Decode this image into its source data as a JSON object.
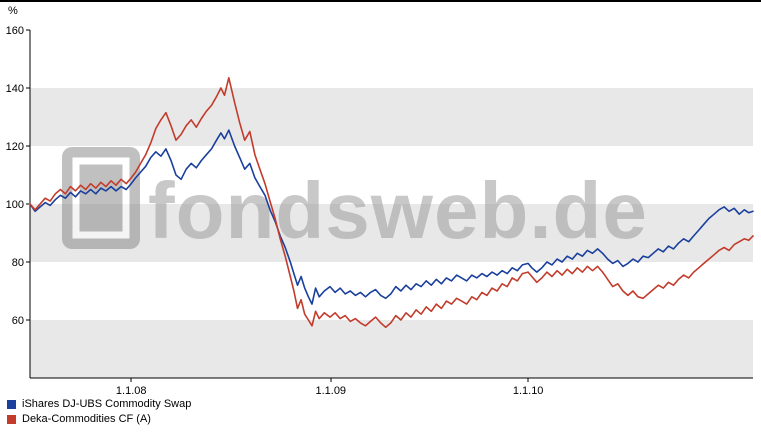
{
  "chart_data": {
    "type": "line",
    "title": "",
    "unit_label": "%",
    "ylim": [
      40,
      160
    ],
    "y_ticks": [
      160,
      140,
      120,
      100,
      80,
      60
    ],
    "x_ticks": [
      {
        "label": "1.1.08",
        "t": 14
      },
      {
        "label": "1.1.09",
        "t": 41.6
      },
      {
        "label": "1.1.10",
        "t": 68.9
      }
    ],
    "gray_bands": [
      [
        40,
        60
      ],
      [
        80,
        100
      ],
      [
        120,
        140
      ]
    ],
    "grid": "banded",
    "legend_position": "bottom-left",
    "watermark_text": "fondsweb.de",
    "colors": {
      "band": "#e8e8e8",
      "axis": "#000000",
      "watermark": "#9c9c9c",
      "background": "#ffffff"
    },
    "series": [
      {
        "name": "iShares DJ-UBS Commodity Swap",
        "color": "#1a3f9c",
        "points": [
          [
            0,
            100
          ],
          [
            0.7,
            97.5
          ],
          [
            1.4,
            99
          ],
          [
            2.1,
            100.5
          ],
          [
            2.8,
            99.5
          ],
          [
            3.5,
            101.5
          ],
          [
            4.2,
            103
          ],
          [
            4.9,
            102
          ],
          [
            5.6,
            104
          ],
          [
            6.3,
            102.5
          ],
          [
            7,
            104.5
          ],
          [
            7.7,
            103.5
          ],
          [
            8.4,
            105
          ],
          [
            9.1,
            103.5
          ],
          [
            9.8,
            105.5
          ],
          [
            10.5,
            104.5
          ],
          [
            11.2,
            106
          ],
          [
            11.9,
            104.5
          ],
          [
            12.6,
            106
          ],
          [
            13.3,
            105
          ],
          [
            14,
            107
          ],
          [
            14.6,
            109
          ],
          [
            15.3,
            111
          ],
          [
            16,
            113
          ],
          [
            16.7,
            116
          ],
          [
            17.4,
            118
          ],
          [
            18.1,
            116.5
          ],
          [
            18.8,
            119
          ],
          [
            19.5,
            115
          ],
          [
            20.2,
            110
          ],
          [
            20.9,
            108.5
          ],
          [
            21.6,
            112
          ],
          [
            22.3,
            114
          ],
          [
            23,
            112.5
          ],
          [
            23.7,
            115
          ],
          [
            24.4,
            117
          ],
          [
            25.1,
            119
          ],
          [
            25.8,
            122
          ],
          [
            26.4,
            124.5
          ],
          [
            26.9,
            122.5
          ],
          [
            27.5,
            125.5
          ],
          [
            28.3,
            120
          ],
          [
            29,
            116
          ],
          [
            29.7,
            112
          ],
          [
            30.4,
            114
          ],
          [
            31.1,
            109
          ],
          [
            31.8,
            106
          ],
          [
            32.5,
            103
          ],
          [
            33.2,
            98
          ],
          [
            33.9,
            94
          ],
          [
            34.6,
            89
          ],
          [
            35.3,
            85
          ],
          [
            36,
            80
          ],
          [
            36.5,
            76
          ],
          [
            37,
            72
          ],
          [
            37.5,
            75
          ],
          [
            38,
            71
          ],
          [
            38.5,
            68
          ],
          [
            39,
            65.5
          ],
          [
            39.5,
            71
          ],
          [
            40,
            68
          ],
          [
            40.7,
            70
          ],
          [
            41.5,
            71.5
          ],
          [
            42.2,
            69.5
          ],
          [
            42.9,
            71
          ],
          [
            43.6,
            69
          ],
          [
            44.3,
            70
          ],
          [
            45,
            68.5
          ],
          [
            45.7,
            69.5
          ],
          [
            46.4,
            68
          ],
          [
            47.1,
            69.5
          ],
          [
            47.8,
            70.5
          ],
          [
            48.5,
            68.5
          ],
          [
            49.2,
            67.5
          ],
          [
            49.9,
            69
          ],
          [
            50.6,
            71.5
          ],
          [
            51.3,
            70
          ],
          [
            52,
            72
          ],
          [
            52.7,
            70.5
          ],
          [
            53.4,
            72.5
          ],
          [
            54.1,
            71.5
          ],
          [
            54.8,
            73.5
          ],
          [
            55.5,
            72
          ],
          [
            56.2,
            74
          ],
          [
            56.9,
            72.5
          ],
          [
            57.6,
            74.5
          ],
          [
            58.3,
            73.5
          ],
          [
            59,
            75.5
          ],
          [
            59.7,
            74.5
          ],
          [
            60.4,
            73.5
          ],
          [
            61.1,
            75.5
          ],
          [
            61.8,
            74.5
          ],
          [
            62.5,
            76
          ],
          [
            63.2,
            75
          ],
          [
            63.9,
            76.5
          ],
          [
            64.6,
            75.5
          ],
          [
            65.3,
            77
          ],
          [
            66,
            76
          ],
          [
            66.7,
            78
          ],
          [
            67.4,
            77
          ],
          [
            68.1,
            79
          ],
          [
            68.9,
            79.5
          ],
          [
            69.4,
            78
          ],
          [
            70.1,
            76.5
          ],
          [
            70.8,
            78
          ],
          [
            71.5,
            80
          ],
          [
            72.2,
            79
          ],
          [
            72.9,
            81
          ],
          [
            73.6,
            80
          ],
          [
            74.3,
            82
          ],
          [
            75,
            81
          ],
          [
            75.7,
            83
          ],
          [
            76.4,
            82
          ],
          [
            77.1,
            84
          ],
          [
            77.8,
            83
          ],
          [
            78.5,
            84.5
          ],
          [
            79.2,
            83
          ],
          [
            79.9,
            81
          ],
          [
            80.6,
            79.5
          ],
          [
            81.3,
            80.5
          ],
          [
            82,
            78.5
          ],
          [
            82.7,
            79.5
          ],
          [
            83.4,
            81
          ],
          [
            84.1,
            80
          ],
          [
            84.8,
            82
          ],
          [
            85.5,
            81.5
          ],
          [
            86.2,
            83
          ],
          [
            86.9,
            84.5
          ],
          [
            87.6,
            83.5
          ],
          [
            88.3,
            85.5
          ],
          [
            89,
            84.5
          ],
          [
            89.7,
            86.5
          ],
          [
            90.4,
            88
          ],
          [
            91.1,
            87
          ],
          [
            91.8,
            89
          ],
          [
            92.5,
            91
          ],
          [
            93.2,
            93
          ],
          [
            93.9,
            95
          ],
          [
            94.6,
            96.5
          ],
          [
            95.3,
            98
          ],
          [
            96,
            99
          ],
          [
            96.7,
            97.5
          ],
          [
            97.4,
            98.5
          ],
          [
            98.1,
            96.5
          ],
          [
            98.8,
            98
          ],
          [
            99.4,
            97
          ],
          [
            100,
            97.5
          ]
        ]
      },
      {
        "name": "Deka-Commodities CF (A)",
        "color": "#c23b2b",
        "points": [
          [
            0,
            100
          ],
          [
            0.7,
            98
          ],
          [
            1.4,
            100
          ],
          [
            2.1,
            102
          ],
          [
            2.8,
            101
          ],
          [
            3.5,
            103.5
          ],
          [
            4.2,
            105
          ],
          [
            4.9,
            103.5
          ],
          [
            5.6,
            106
          ],
          [
            6.3,
            104.5
          ],
          [
            7,
            106.5
          ],
          [
            7.7,
            105
          ],
          [
            8.4,
            107
          ],
          [
            9.1,
            105.5
          ],
          [
            9.8,
            107.5
          ],
          [
            10.5,
            106
          ],
          [
            11.2,
            108
          ],
          [
            11.9,
            106.5
          ],
          [
            12.6,
            108.5
          ],
          [
            13.3,
            107
          ],
          [
            14,
            109
          ],
          [
            14.6,
            111
          ],
          [
            15.3,
            114
          ],
          [
            16,
            117
          ],
          [
            16.7,
            121
          ],
          [
            17.4,
            126
          ],
          [
            18.1,
            129
          ],
          [
            18.8,
            131.5
          ],
          [
            19.5,
            127
          ],
          [
            20.2,
            122
          ],
          [
            20.9,
            124
          ],
          [
            21.6,
            127
          ],
          [
            22.3,
            129
          ],
          [
            23,
            126.5
          ],
          [
            23.7,
            129.5
          ],
          [
            24.4,
            132
          ],
          [
            25.1,
            134
          ],
          [
            25.8,
            137
          ],
          [
            26.4,
            140
          ],
          [
            26.9,
            137.5
          ],
          [
            27.5,
            143.5
          ],
          [
            28.3,
            135
          ],
          [
            29,
            128
          ],
          [
            29.7,
            122
          ],
          [
            30.4,
            125
          ],
          [
            31.1,
            117
          ],
          [
            31.8,
            112
          ],
          [
            32.5,
            107
          ],
          [
            33.2,
            101
          ],
          [
            33.9,
            95
          ],
          [
            34.6,
            88
          ],
          [
            35.3,
            82
          ],
          [
            36,
            75
          ],
          [
            36.5,
            70
          ],
          [
            37,
            64
          ],
          [
            37.5,
            67
          ],
          [
            38,
            62
          ],
          [
            38.5,
            60
          ],
          [
            39,
            58
          ],
          [
            39.5,
            63
          ],
          [
            40,
            60.5
          ],
          [
            40.7,
            62.5
          ],
          [
            41.5,
            61
          ],
          [
            42.2,
            62.5
          ],
          [
            42.9,
            60.5
          ],
          [
            43.6,
            61.5
          ],
          [
            44.3,
            59.5
          ],
          [
            45,
            60.5
          ],
          [
            45.7,
            59
          ],
          [
            46.4,
            58
          ],
          [
            47.1,
            59.5
          ],
          [
            47.8,
            61
          ],
          [
            48.5,
            59
          ],
          [
            49.2,
            57.5
          ],
          [
            49.9,
            59
          ],
          [
            50.6,
            61.5
          ],
          [
            51.3,
            60
          ],
          [
            52,
            62.5
          ],
          [
            52.7,
            61
          ],
          [
            53.4,
            63.5
          ],
          [
            54.1,
            62
          ],
          [
            54.8,
            64.5
          ],
          [
            55.5,
            63
          ],
          [
            56.2,
            65.5
          ],
          [
            56.9,
            64
          ],
          [
            57.6,
            66.5
          ],
          [
            58.3,
            65.5
          ],
          [
            59,
            67.5
          ],
          [
            59.7,
            66.5
          ],
          [
            60.4,
            65.5
          ],
          [
            61.1,
            68
          ],
          [
            61.8,
            67
          ],
          [
            62.5,
            69.5
          ],
          [
            63.2,
            68.5
          ],
          [
            63.9,
            71
          ],
          [
            64.6,
            70
          ],
          [
            65.3,
            72.5
          ],
          [
            66,
            71.5
          ],
          [
            66.7,
            74.5
          ],
          [
            67.4,
            73.5
          ],
          [
            68.1,
            76
          ],
          [
            68.9,
            76.5
          ],
          [
            69.4,
            75
          ],
          [
            70.1,
            73
          ],
          [
            70.8,
            74.5
          ],
          [
            71.5,
            76.5
          ],
          [
            72.2,
            75
          ],
          [
            72.9,
            77
          ],
          [
            73.6,
            75.5
          ],
          [
            74.3,
            77.5
          ],
          [
            75,
            76
          ],
          [
            75.7,
            78
          ],
          [
            76.4,
            76.5
          ],
          [
            77.1,
            78.5
          ],
          [
            77.8,
            77
          ],
          [
            78.5,
            78.5
          ],
          [
            79.2,
            76.5
          ],
          [
            79.9,
            74
          ],
          [
            80.6,
            71.5
          ],
          [
            81.3,
            72.5
          ],
          [
            82,
            70
          ],
          [
            82.7,
            68.5
          ],
          [
            83.4,
            70
          ],
          [
            84.1,
            68
          ],
          [
            84.8,
            67.5
          ],
          [
            85.5,
            69
          ],
          [
            86.2,
            70.5
          ],
          [
            86.9,
            72
          ],
          [
            87.6,
            71
          ],
          [
            88.3,
            73
          ],
          [
            89,
            72
          ],
          [
            89.7,
            74
          ],
          [
            90.4,
            75.5
          ],
          [
            91.1,
            74.5
          ],
          [
            91.8,
            76.5
          ],
          [
            92.5,
            78
          ],
          [
            93.2,
            79.5
          ],
          [
            93.9,
            81
          ],
          [
            94.6,
            82.5
          ],
          [
            95.3,
            84
          ],
          [
            96,
            85
          ],
          [
            96.7,
            84
          ],
          [
            97.4,
            86
          ],
          [
            98.1,
            87
          ],
          [
            98.8,
            88
          ],
          [
            99.4,
            87.5
          ],
          [
            100,
            89
          ]
        ]
      }
    ]
  }
}
